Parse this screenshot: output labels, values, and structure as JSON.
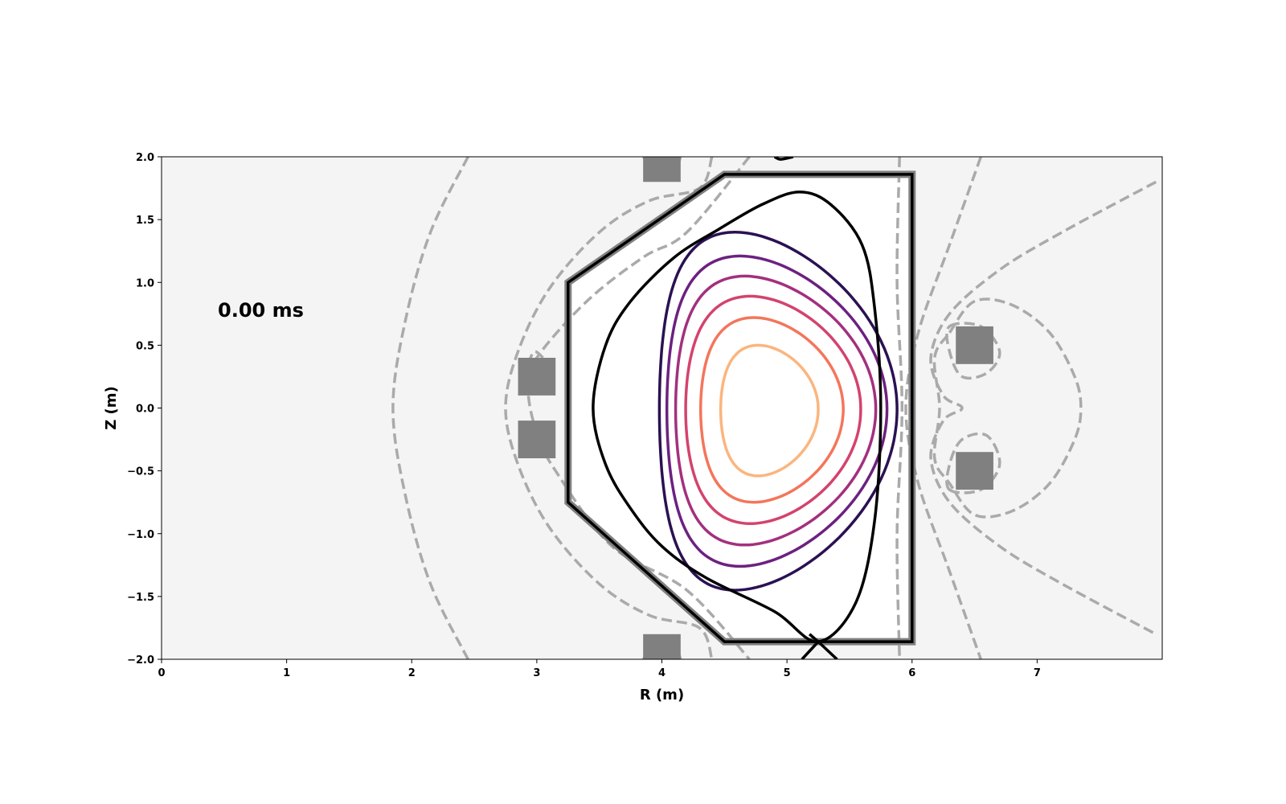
{
  "chart_data": {
    "type": "contour",
    "xlabel": "R (m)",
    "ylabel": "Z (m)",
    "xlim": [
      0,
      8
    ],
    "ylim": [
      -2,
      2
    ],
    "xticks": [
      0,
      1,
      2,
      3,
      4,
      5,
      6,
      7
    ],
    "yticks": [
      -2.0,
      -1.5,
      -1.0,
      -0.5,
      0.0,
      0.5,
      1.0,
      1.5,
      2.0
    ],
    "xtick_labels": [
      "0",
      "1",
      "2",
      "3",
      "4",
      "5",
      "6",
      "7"
    ],
    "ytick_labels": [
      "−2.0",
      "−1.5",
      "−1.0",
      "−0.5",
      "0.0",
      "0.5",
      "1.0",
      "1.5",
      "2.0"
    ],
    "annotation": "0.00 ms",
    "background_color": "#f4f4f4",
    "vessel_color": "#808080",
    "coil_color": "#808080",
    "vacuum_contour_color": "#aaaaaa",
    "vessel_wall": [
      [
        4.5,
        1.86
      ],
      [
        6.0,
        1.86
      ],
      [
        6.0,
        -1.86
      ],
      [
        4.5,
        -1.86
      ],
      [
        3.25,
        -0.75
      ],
      [
        3.25,
        1.0
      ]
    ],
    "coils": [
      {
        "r": 4.0,
        "z": 1.95,
        "w": 0.3,
        "h": 0.3
      },
      {
        "r": 4.0,
        "z": -1.95,
        "w": 0.3,
        "h": 0.3
      },
      {
        "r": 3.0,
        "z": 0.25,
        "w": 0.3,
        "h": 0.3
      },
      {
        "r": 3.0,
        "z": -0.25,
        "w": 0.3,
        "h": 0.3
      },
      {
        "r": 6.5,
        "z": 0.5,
        "w": 0.3,
        "h": 0.3
      },
      {
        "r": 6.5,
        "z": -0.5,
        "w": 0.3,
        "h": 0.3
      }
    ],
    "flux_surfaces": [
      {
        "r0": 4.83,
        "a": 0.39,
        "z0": -0.01,
        "kup": 0.51,
        "kdn": 0.53,
        "tri": 0.08,
        "sq": 0.03,
        "color": "#fbb57e"
      },
      {
        "r0": 4.83,
        "a": 0.57,
        "z0": -0.01,
        "kup": 0.73,
        "kdn": 0.74,
        "tri": 0.08,
        "sq": 0.05,
        "color": "#f3765b"
      },
      {
        "r0": 4.84,
        "a": 0.7,
        "z0": -0.01,
        "kup": 0.9,
        "kdn": 0.91,
        "tri": 0.12,
        "sq": 0.05,
        "color": "#d3436e"
      },
      {
        "r0": 4.85,
        "a": 0.8,
        "z0": -0.01,
        "kup": 1.06,
        "kdn": 1.08,
        "tri": 0.16,
        "sq": 0.06,
        "color": "#a3307e"
      },
      {
        "r0": 4.86,
        "a": 0.88,
        "z0": -0.01,
        "kup": 1.22,
        "kdn": 1.25,
        "tri": 0.2,
        "sq": 0.06,
        "color": "#6c2180"
      },
      {
        "r0": 4.87,
        "a": 0.95,
        "z0": -0.01,
        "kup": 1.41,
        "kdn": 1.44,
        "tri": 0.24,
        "sq": 0.06,
        "color": "#2a1153"
      }
    ],
    "separatrix_color": "#000000",
    "separatrix": [
      [
        5.25,
        -1.86
      ],
      [
        5.55,
        -1.55
      ],
      [
        5.7,
        -0.9
      ],
      [
        5.75,
        0.0
      ],
      [
        5.7,
        0.8
      ],
      [
        5.6,
        1.3
      ],
      [
        5.35,
        1.62
      ],
      [
        5.1,
        1.72
      ],
      [
        4.8,
        1.62
      ],
      [
        4.45,
        1.42
      ],
      [
        4.1,
        1.2
      ],
      [
        3.75,
        0.85
      ],
      [
        3.55,
        0.5
      ],
      [
        3.45,
        0.0
      ],
      [
        3.55,
        -0.45
      ],
      [
        3.75,
        -0.8
      ],
      [
        4.0,
        -1.1
      ],
      [
        4.35,
        -1.35
      ],
      [
        4.9,
        -1.62
      ],
      [
        5.25,
        -1.86
      ]
    ],
    "separatrix_legs": [
      [
        [
          5.25,
          -1.86
        ],
        [
          5.4,
          -2.0
        ]
      ],
      [
        [
          5.25,
          -1.86
        ],
        [
          5.12,
          -2.0
        ]
      ],
      [
        [
          5.25,
          -1.86
        ],
        [
          5.18,
          -1.8
        ]
      ],
      [
        [
          5.05,
          2.0
        ],
        [
          4.95,
          1.98
        ],
        [
          4.9,
          2.0
        ]
      ]
    ],
    "vacuum_contours": [
      [
        [
          2.45,
          2.0
        ],
        [
          2.15,
          1.4
        ],
        [
          1.95,
          0.7
        ],
        [
          1.85,
          0.0
        ],
        [
          1.95,
          -0.7
        ],
        [
          2.15,
          -1.4
        ],
        [
          2.45,
          -2.0
        ]
      ],
      [
        [
          4.4,
          2.0
        ],
        [
          4.3,
          1.75
        ],
        [
          3.9,
          1.65
        ],
        [
          3.5,
          1.4
        ],
        [
          3.1,
          0.95
        ],
        [
          2.85,
          0.45
        ],
        [
          2.75,
          0.0
        ],
        [
          2.85,
          -0.45
        ],
        [
          3.1,
          -0.95
        ],
        [
          3.5,
          -1.4
        ],
        [
          3.9,
          -1.65
        ],
        [
          4.3,
          -1.75
        ],
        [
          4.4,
          -2.0
        ]
      ],
      [
        [
          4.7,
          2.0
        ],
        [
          4.2,
          1.4
        ],
        [
          3.85,
          1.2
        ],
        [
          3.4,
          0.85
        ],
        [
          3.0,
          0.4
        ],
        [
          2.93,
          0.15
        ],
        [
          3.0,
          -0.2
        ],
        [
          3.15,
          -0.5
        ],
        [
          3.6,
          -1.1
        ],
        [
          4.2,
          -1.45
        ],
        [
          4.7,
          -2.0
        ]
      ],
      [
        [
          3.85,
          2.0
        ],
        [
          3.95,
          1.88
        ],
        [
          4.1,
          1.9
        ],
        [
          4.15,
          2.0
        ]
      ],
      [
        [
          3.85,
          -2.0
        ],
        [
          3.95,
          -1.88
        ],
        [
          4.1,
          -1.9
        ],
        [
          4.15,
          -2.0
        ]
      ],
      [
        [
          5.9,
          2.0
        ],
        [
          5.88,
          1.0
        ],
        [
          5.92,
          0.0
        ],
        [
          5.88,
          -1.0
        ],
        [
          5.9,
          -2.0
        ]
      ],
      [
        [
          6.55,
          2.0
        ],
        [
          6.3,
          1.3
        ],
        [
          6.05,
          0.6
        ],
        [
          5.95,
          0.0
        ],
        [
          6.05,
          -0.6
        ],
        [
          6.3,
          -1.3
        ],
        [
          6.55,
          -2.0
        ]
      ],
      [
        [
          7.95,
          1.8
        ],
        [
          7.2,
          1.4
        ],
        [
          6.7,
          1.1
        ],
        [
          6.3,
          0.75
        ],
        [
          6.15,
          0.4
        ],
        [
          6.25,
          0.1
        ],
        [
          6.4,
          0.0
        ],
        [
          6.25,
          -0.1
        ],
        [
          6.15,
          -0.4
        ],
        [
          6.3,
          -0.75
        ],
        [
          6.7,
          -1.1
        ],
        [
          7.2,
          -1.4
        ],
        [
          7.95,
          -1.8
        ]
      ],
      [
        [
          6.3,
          0.6
        ],
        [
          6.5,
          0.85
        ],
        [
          6.8,
          0.82
        ],
        [
          7.1,
          0.6
        ],
        [
          7.3,
          0.25
        ],
        [
          7.35,
          0.0
        ],
        [
          7.3,
          -0.25
        ],
        [
          7.1,
          -0.6
        ],
        [
          6.8,
          -0.82
        ],
        [
          6.5,
          -0.85
        ],
        [
          6.3,
          -0.6
        ],
        [
          6.18,
          -0.4
        ],
        [
          6.22,
          0.0
        ],
        [
          6.18,
          0.4
        ],
        [
          6.3,
          0.6
        ]
      ],
      [
        [
          6.3,
          0.65
        ],
        [
          6.55,
          0.65
        ],
        [
          6.7,
          0.45
        ],
        [
          6.6,
          0.28
        ],
        [
          6.4,
          0.25
        ],
        [
          6.3,
          0.45
        ],
        [
          6.3,
          0.65
        ]
      ],
      [
        [
          6.3,
          -0.65
        ],
        [
          6.55,
          -0.65
        ],
        [
          6.7,
          -0.45
        ],
        [
          6.6,
          -0.22
        ],
        [
          6.4,
          -0.25
        ],
        [
          6.3,
          -0.45
        ],
        [
          6.3,
          -0.65
        ]
      ],
      [
        [
          2.93,
          0.35
        ],
        [
          2.98,
          0.45
        ],
        [
          3.05,
          0.4
        ]
      ]
    ]
  }
}
